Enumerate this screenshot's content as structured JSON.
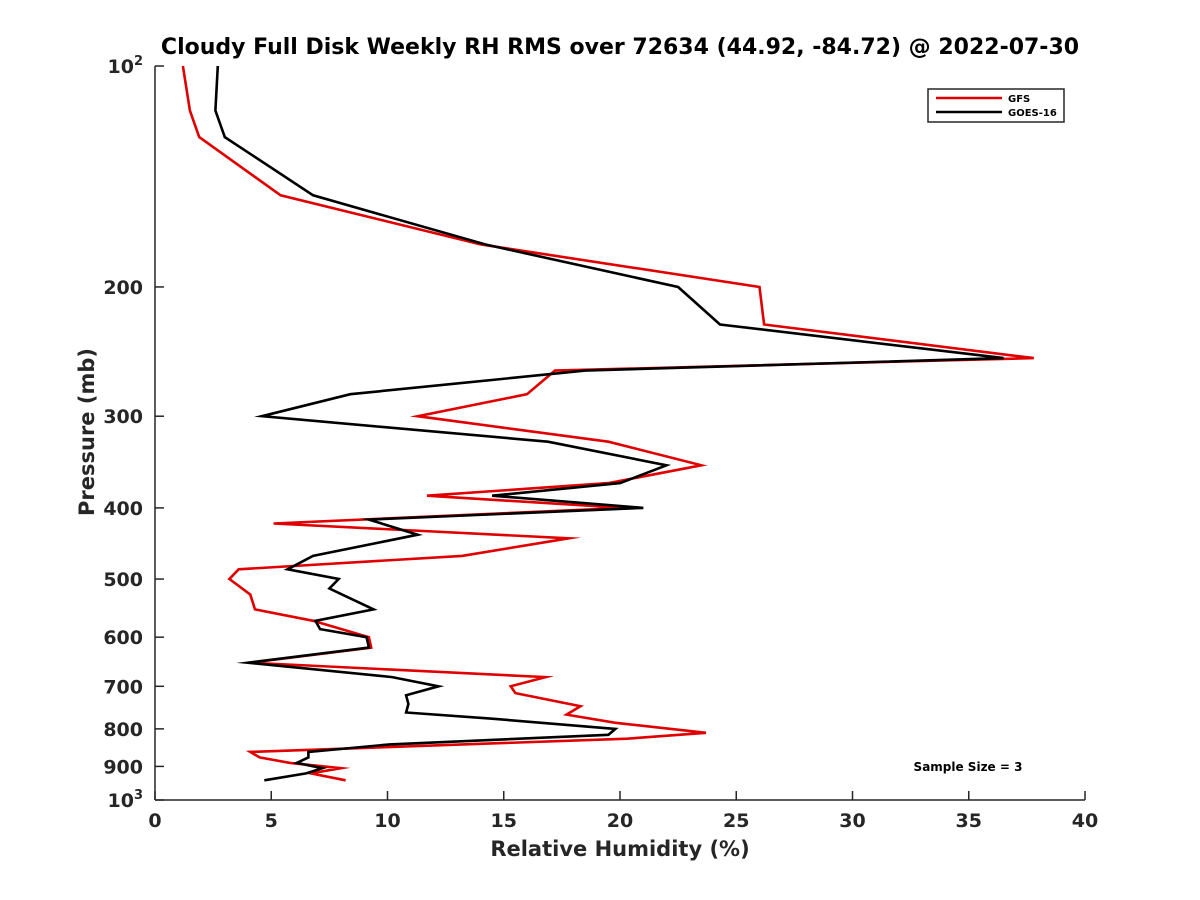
{
  "chart_data": {
    "type": "line",
    "title": "Cloudy Full Disk Weekly RH RMS over 72634 (44.92, -84.72) @ 2022-07-30",
    "xlabel": "Relative Humidity (%)",
    "ylabel": "Pressure (mb)",
    "xlim": [
      0,
      40
    ],
    "ylim": [
      100,
      1000
    ],
    "y_scale": "log",
    "y_reversed": true,
    "grid": false,
    "legend_position": "top-right",
    "x_ticks": [
      "0",
      "5",
      "10",
      "15",
      "20",
      "25",
      "30",
      "35",
      "40"
    ],
    "y_ticks": [
      {
        "value": 100,
        "label": "10",
        "sup": "2"
      },
      {
        "value": 200,
        "label": "200"
      },
      {
        "value": 300,
        "label": "300"
      },
      {
        "value": 400,
        "label": "400"
      },
      {
        "value": 500,
        "label": "500"
      },
      {
        "value": 600,
        "label": "600"
      },
      {
        "value": 700,
        "label": "700"
      },
      {
        "value": 800,
        "label": "800"
      },
      {
        "value": 900,
        "label": "900"
      },
      {
        "value": 1000,
        "label": "10",
        "sup": "3"
      }
    ],
    "annotation": "Sample Size = 3",
    "series": [
      {
        "name": "GFS",
        "color": "#e00000",
        "points": [
          [
            1.2,
            100
          ],
          [
            1.5,
            115
          ],
          [
            1.9,
            125
          ],
          [
            5.4,
            150
          ],
          [
            14.0,
            175
          ],
          [
            26.0,
            200
          ],
          [
            26.2,
            225
          ],
          [
            37.8,
            250
          ],
          [
            17.2,
            260
          ],
          [
            16.0,
            280
          ],
          [
            11.3,
            300
          ],
          [
            19.5,
            325
          ],
          [
            23.5,
            350
          ],
          [
            19.5,
            370
          ],
          [
            11.7,
            385
          ],
          [
            20.2,
            400
          ],
          [
            5.1,
            420
          ],
          [
            17.8,
            440
          ],
          [
            13.2,
            465
          ],
          [
            3.6,
            485
          ],
          [
            3.2,
            500
          ],
          [
            4.1,
            525
          ],
          [
            4.3,
            550
          ],
          [
            6.8,
            570
          ],
          [
            9.2,
            600
          ],
          [
            9.3,
            620
          ],
          [
            4.1,
            650
          ],
          [
            16.8,
            680
          ],
          [
            15.3,
            700
          ],
          [
            15.5,
            715
          ],
          [
            18.3,
            745
          ],
          [
            17.7,
            765
          ],
          [
            19.8,
            785
          ],
          [
            23.7,
            810
          ],
          [
            20.3,
            825
          ],
          [
            4.1,
            860
          ],
          [
            4.5,
            875
          ],
          [
            5.8,
            890
          ],
          [
            8.0,
            905
          ],
          [
            6.7,
            920
          ],
          [
            8.2,
            940
          ]
        ]
      },
      {
        "name": "GOES-16",
        "color": "#000000",
        "points": [
          [
            2.7,
            100
          ],
          [
            2.6,
            115
          ],
          [
            3.0,
            125
          ],
          [
            6.8,
            150
          ],
          [
            14.2,
            175
          ],
          [
            22.5,
            200
          ],
          [
            24.3,
            225
          ],
          [
            36.5,
            250
          ],
          [
            18.5,
            260
          ],
          [
            8.4,
            280
          ],
          [
            4.6,
            300
          ],
          [
            16.9,
            325
          ],
          [
            22.0,
            350
          ],
          [
            20.0,
            370
          ],
          [
            14.5,
            385
          ],
          [
            21.0,
            400
          ],
          [
            9.2,
            415
          ],
          [
            11.3,
            435
          ],
          [
            6.8,
            465
          ],
          [
            5.7,
            485
          ],
          [
            7.9,
            500
          ],
          [
            7.5,
            515
          ],
          [
            9.4,
            550
          ],
          [
            6.9,
            570
          ],
          [
            7.1,
            585
          ],
          [
            9.1,
            600
          ],
          [
            9.2,
            620
          ],
          [
            4.0,
            650
          ],
          [
            10.2,
            680
          ],
          [
            12.2,
            700
          ],
          [
            10.8,
            720
          ],
          [
            10.9,
            740
          ],
          [
            10.8,
            760
          ],
          [
            14.5,
            775
          ],
          [
            19.8,
            800
          ],
          [
            19.5,
            815
          ],
          [
            10.1,
            840
          ],
          [
            6.6,
            860
          ],
          [
            6.6,
            875
          ],
          [
            6.1,
            890
          ],
          [
            7.2,
            905
          ],
          [
            6.5,
            920
          ],
          [
            4.7,
            940
          ]
        ]
      }
    ]
  }
}
